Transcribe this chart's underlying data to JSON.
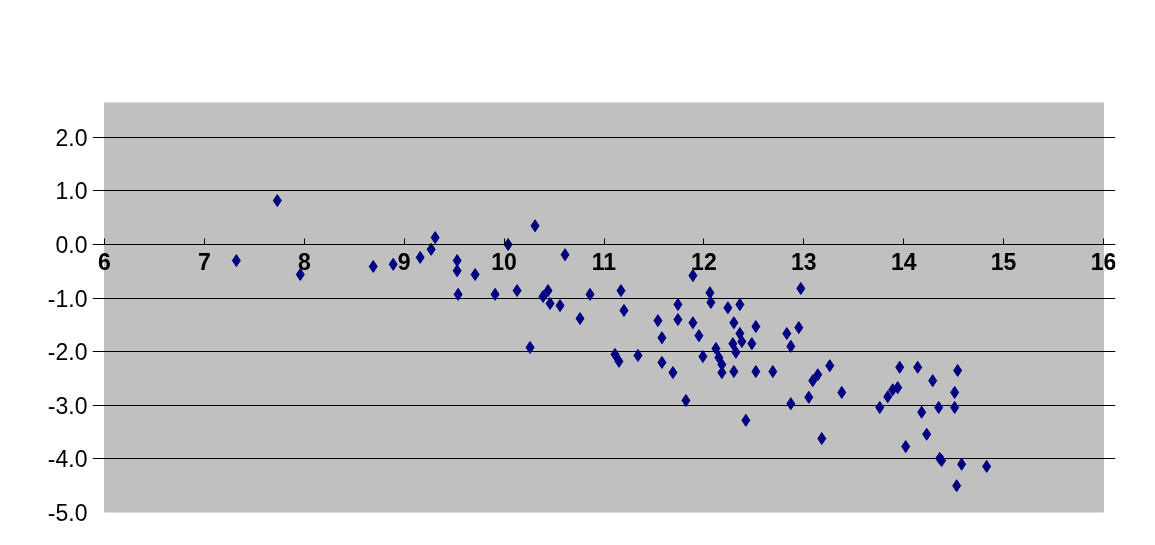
{
  "chart_data": {
    "type": "scatter",
    "marker": "diamond",
    "grid": "y",
    "xlim": [
      6,
      16
    ],
    "ylim": [
      -5,
      2.65
    ],
    "xticks": [
      6,
      7,
      8,
      9,
      10,
      11,
      12,
      13,
      14,
      15,
      16
    ],
    "yticks": [
      {
        "value": -5,
        "label": "-5.0"
      },
      {
        "value": -4,
        "label": "-4.0"
      },
      {
        "value": -3,
        "label": "-3.0"
      },
      {
        "value": -2,
        "label": "-2.0"
      },
      {
        "value": -1,
        "label": "-1.0"
      },
      {
        "value": 0,
        "label": "0.0"
      },
      {
        "value": 1,
        "label": "1.0"
      },
      {
        "value": 2,
        "label": "2.0"
      }
    ],
    "series": [
      {
        "color": "#000080",
        "x": [
          7.32,
          7.73,
          7.96,
          8.69,
          8.89,
          9.16,
          9.27,
          9.31,
          9.53,
          9.53,
          9.54,
          9.71,
          9.91,
          10.04,
          10.13,
          10.31,
          10.26,
          10.44,
          10.39,
          10.46,
          10.56,
          10.61,
          10.76,
          10.86,
          11.17,
          11.2,
          11.11,
          11.15,
          11.34,
          11.54,
          11.58,
          11.58,
          11.69,
          11.74,
          11.74,
          11.82,
          11.89,
          11.89,
          11.95,
          12.06,
          12.07,
          11.99,
          12.12,
          12.15,
          12.18,
          12.18,
          12.24,
          12.3,
          12.3,
          12.29,
          12.32,
          12.36,
          12.36,
          12.38,
          12.42,
          12.48,
          12.52,
          12.52,
          12.69,
          12.83,
          12.87,
          12.87,
          12.95,
          12.97,
          13.05,
          13.09,
          13.14,
          13.18,
          13.26,
          13.38,
          13.76,
          13.84,
          13.89,
          13.94,
          13.96,
          14.02,
          14.14,
          14.18,
          14.23,
          14.29,
          14.35,
          14.36,
          14.38,
          14.51,
          14.51,
          14.54,
          14.53,
          14.58,
          14.83
        ],
        "values": [
          -0.3,
          0.82,
          -0.56,
          -0.41,
          -0.37,
          -0.24,
          -0.09,
          0.13,
          -0.3,
          -0.49,
          -0.93,
          -0.56,
          -0.93,
          0.0,
          -0.86,
          0.35,
          -1.92,
          -0.86,
          -0.97,
          -1.1,
          -1.14,
          -0.19,
          -1.38,
          -0.93,
          -0.86,
          -1.23,
          -2.05,
          -2.18,
          -2.07,
          -1.42,
          -1.74,
          -2.2,
          -2.39,
          -1.12,
          -1.4,
          -2.91,
          -0.58,
          -1.46,
          -1.7,
          -0.9,
          -1.08,
          -2.09,
          -1.94,
          -2.11,
          -2.24,
          -2.39,
          -1.18,
          -1.46,
          -2.37,
          -1.85,
          -2.01,
          -1.12,
          -1.66,
          -1.81,
          -3.28,
          -1.85,
          -1.53,
          -2.37,
          -2.37,
          -1.66,
          -1.9,
          -2.97,
          -1.55,
          -0.82,
          -2.85,
          -2.54,
          -2.43,
          -3.62,
          -2.26,
          -2.76,
          -3.04,
          -2.84,
          -2.71,
          -2.67,
          -2.29,
          -3.77,
          -2.29,
          -3.13,
          -3.54,
          -2.54,
          -3.04,
          -3.99,
          -4.03,
          -2.76,
          -3.04,
          -2.35,
          -4.5,
          -4.1,
          -4.14
        ]
      }
    ]
  }
}
